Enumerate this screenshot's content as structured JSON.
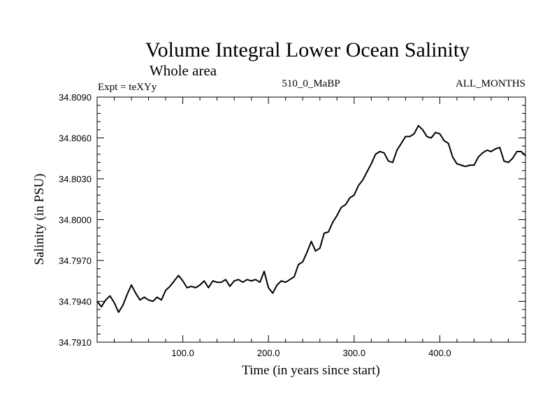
{
  "chart_data": {
    "type": "line",
    "title": "Volume Integral Lower Ocean Salinity",
    "subtitle": "Whole area",
    "left_label": "Expt = teXYy",
    "center_label": "510_0_MaBP",
    "right_label": "ALL_MONTHS",
    "xlabel": "Time (in years since start)",
    "ylabel": "Salinity (in PSU)",
    "xlim": [
      0,
      500
    ],
    "ylim": [
      34.791,
      34.809
    ],
    "xticks": [
      100,
      200,
      300,
      400
    ],
    "xtick_labels": [
      "100.0",
      "200.0",
      "300.0",
      "400.0"
    ],
    "yticks": [
      34.791,
      34.794,
      34.797,
      34.8,
      34.803,
      34.806,
      34.809
    ],
    "ytick_labels": [
      "34.7910",
      "34.7940",
      "34.7970",
      "34.8000",
      "34.8030",
      "34.8060",
      "34.8090"
    ],
    "grid": false,
    "series": [
      {
        "color": "#000000",
        "x": [
          0,
          5,
          10,
          15,
          20,
          25,
          30,
          35,
          40,
          45,
          50,
          55,
          60,
          65,
          70,
          75,
          80,
          85,
          90,
          95,
          100,
          105,
          110,
          115,
          120,
          125,
          130,
          135,
          140,
          145,
          150,
          155,
          160,
          165,
          170,
          175,
          180,
          185,
          190,
          195,
          200,
          205,
          210,
          215,
          220,
          225,
          230,
          235,
          240,
          245,
          250,
          255,
          260,
          265,
          270,
          275,
          280,
          285,
          290,
          295,
          300,
          305,
          310,
          315,
          320,
          325,
          330,
          335,
          340,
          345,
          350,
          355,
          360,
          365,
          370,
          375,
          380,
          385,
          390,
          395,
          400,
          405,
          410,
          415,
          420,
          425,
          430,
          435,
          440,
          445,
          450,
          455,
          460,
          465,
          470,
          475,
          480,
          485,
          490,
          495,
          500
        ],
        "values": [
          34.794,
          34.7936,
          34.7941,
          34.7944,
          34.7939,
          34.7932,
          34.7937,
          34.7945,
          34.7952,
          34.7946,
          34.7941,
          34.7943,
          34.7941,
          34.794,
          34.7943,
          34.7941,
          34.7948,
          34.7951,
          34.7955,
          34.7959,
          34.7955,
          34.795,
          34.7951,
          34.795,
          34.7952,
          34.7955,
          34.795,
          34.7955,
          34.7954,
          34.7954,
          34.7956,
          34.7951,
          34.7955,
          34.7956,
          34.7954,
          34.7956,
          34.7955,
          34.7956,
          34.7954,
          34.7962,
          34.795,
          34.7946,
          34.7952,
          34.7955,
          34.7954,
          34.7956,
          34.7958,
          34.7967,
          34.7969,
          34.7976,
          34.7984,
          34.7977,
          34.7979,
          34.799,
          34.7991,
          34.7998,
          34.8003,
          34.8009,
          34.8011,
          34.8016,
          34.8018,
          34.8025,
          34.8029,
          34.8035,
          34.8041,
          34.8048,
          34.805,
          34.8049,
          34.8043,
          34.8042,
          34.8051,
          34.8056,
          34.8061,
          34.8061,
          34.8063,
          34.8069,
          34.8066,
          34.8061,
          34.806,
          34.8064,
          34.8063,
          34.8058,
          34.8056,
          34.8046,
          34.8041,
          34.804,
          34.8039,
          34.804,
          34.804,
          34.8046,
          34.8049,
          34.8051,
          34.805,
          34.8052,
          34.8053,
          34.8043,
          34.8042,
          34.8045,
          34.805,
          34.805,
          34.8047
        ]
      }
    ]
  }
}
